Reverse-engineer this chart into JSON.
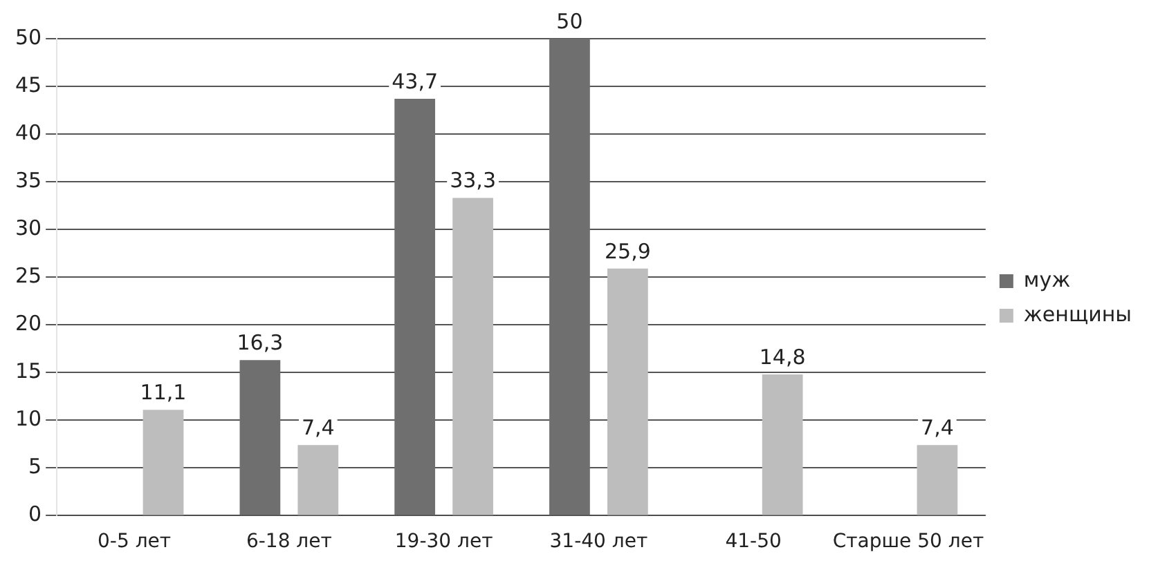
{
  "chart_data": {
    "type": "bar",
    "categories": [
      "0-5 лет",
      "6-18 лет",
      "19-30 лет",
      "31-40 лет",
      "41-50",
      "Старше 50 лет"
    ],
    "series": [
      {
        "name": "муж",
        "color": "#6f6f6f",
        "values": [
          null,
          16.3,
          43.7,
          50,
          null,
          null
        ],
        "value_labels": [
          null,
          "16,3",
          "43,7",
          "50",
          null,
          null
        ]
      },
      {
        "name": "женщины",
        "color": "#bdbdbd",
        "values": [
          11.1,
          7.4,
          33.3,
          25.9,
          14.8,
          7.4
        ],
        "value_labels": [
          "11,1",
          "7,4",
          "33,3",
          "25,9",
          "14,8",
          "7,4"
        ]
      }
    ],
    "ylim": [
      0,
      50
    ],
    "yticks": [
      0,
      5,
      10,
      15,
      20,
      25,
      30,
      35,
      40,
      45,
      50
    ],
    "grid": "y",
    "legend": "right"
  }
}
